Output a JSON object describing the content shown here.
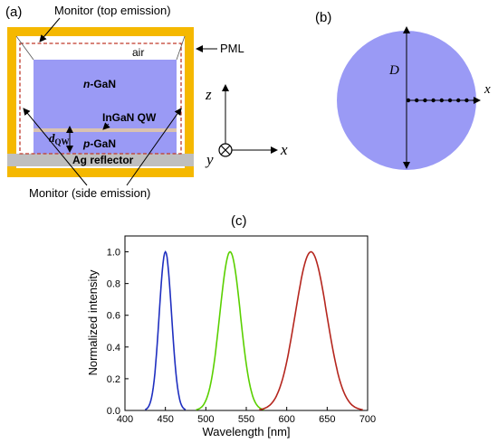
{
  "panel_a": {
    "label": "(a)",
    "monitor_top": "Monitor (top emission)",
    "monitor_side": "Monitor (side emission)",
    "pml": "PML",
    "air": "air",
    "ngan": "n-GaN",
    "ngan_italic": "n",
    "ngan_rest": "-GaN",
    "qw": "InGaN QW",
    "pgan_italic": "p",
    "pgan_rest": "-GaN",
    "dqw_main": "d",
    "dqw_sub": "QW",
    "ag": "Ag reflector",
    "axis_z": "z",
    "axis_x": "x",
    "axis_y": "y",
    "colors": {
      "pml_frame": "#f5b800",
      "gan": "#9a9af5",
      "qw": "#d9c2b0",
      "ag": "#bfbfbf",
      "monitor": "#c0392b"
    }
  },
  "panel_b": {
    "label": "(b)",
    "diameter": "D",
    "axis_x": "x",
    "colors": {
      "disk": "#9a9af5"
    }
  },
  "panel_c": {
    "label": "(c)"
  },
  "chart_data": {
    "type": "line",
    "xlabel": "Wavelength [nm]",
    "ylabel": "Normalized intensity",
    "xlim": [
      400,
      700
    ],
    "ylim": [
      0,
      1.1
    ],
    "xticks": [
      "400",
      "450",
      "500",
      "550",
      "600",
      "650",
      "700"
    ],
    "yticks": [
      "0.0",
      "0.2",
      "0.4",
      "0.6",
      "0.8",
      "1.0"
    ],
    "series": [
      {
        "color": "#1f2fc0",
        "peak": 450,
        "fwhm": 18,
        "x": [
          420,
          425,
          430,
          435,
          440,
          445,
          450,
          455,
          460,
          465,
          470,
          475,
          480
        ],
        "values": [
          0.0,
          0.02,
          0.08,
          0.25,
          0.55,
          0.88,
          1.0,
          0.88,
          0.55,
          0.25,
          0.08,
          0.02,
          0.0
        ]
      },
      {
        "color": "#5ad000",
        "peak": 530,
        "fwhm": 30,
        "x": [
          485,
          495,
          505,
          515,
          520,
          525,
          530,
          535,
          540,
          545,
          555,
          565,
          575
        ],
        "values": [
          0.0,
          0.03,
          0.18,
          0.53,
          0.76,
          0.94,
          1.0,
          0.94,
          0.76,
          0.53,
          0.18,
          0.03,
          0.0
        ]
      },
      {
        "color": "#b5261e",
        "peak": 630,
        "fwhm": 46,
        "x": [
          565,
          580,
          595,
          605,
          615,
          622,
          630,
          638,
          645,
          655,
          665,
          680,
          695
        ],
        "values": [
          0.02,
          0.09,
          0.32,
          0.56,
          0.81,
          0.95,
          1.0,
          0.95,
          0.85,
          0.56,
          0.32,
          0.09,
          0.02
        ]
      }
    ]
  }
}
